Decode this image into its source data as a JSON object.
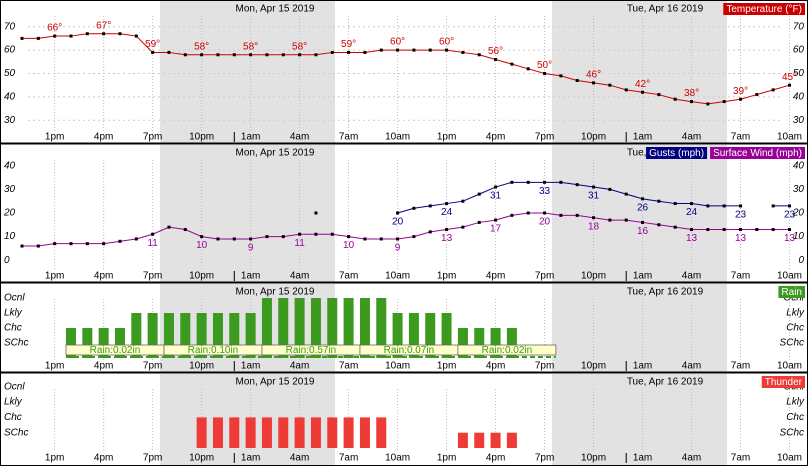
{
  "chart_data": [
    {
      "type": "line",
      "dates": [
        "Mon, Apr 15 2019",
        "Tue, Apr 16 2019"
      ],
      "categories": [
        null,
        null,
        "1pm",
        null,
        null,
        "4pm",
        null,
        null,
        "7pm",
        null,
        null,
        "10pm",
        null,
        null,
        "1am",
        null,
        null,
        "4am",
        null,
        null,
        "7am",
        null,
        null,
        "10am",
        null,
        null,
        "1pm",
        null,
        null,
        "4pm",
        null,
        null,
        "7pm",
        null,
        null,
        "10pm",
        null,
        null,
        "1am",
        null,
        null,
        "4am",
        null,
        null,
        "7am",
        null,
        null,
        "10am"
      ],
      "series": [
        {
          "name": "Temperature (°F)",
          "color": "#cc0000",
          "values": [
            65,
            65,
            66,
            66,
            67,
            67,
            67,
            66,
            59,
            59,
            58,
            58,
            58,
            58,
            58,
            58,
            58,
            58,
            58,
            59,
            59,
            59,
            60,
            60,
            60,
            60,
            60,
            59,
            58,
            56,
            54,
            52,
            50,
            49,
            47,
            46,
            45,
            43,
            42,
            41,
            39,
            38,
            37,
            38,
            39,
            41,
            43,
            45
          ],
          "value_labels": [
            null,
            null,
            "66°",
            null,
            null,
            "67°",
            null,
            null,
            "59°",
            null,
            null,
            "58°",
            null,
            null,
            "58°",
            null,
            null,
            "58°",
            null,
            null,
            "59°",
            null,
            null,
            "60°",
            null,
            null,
            "60°",
            null,
            null,
            "56°",
            null,
            null,
            "50°",
            null,
            null,
            "46°",
            null,
            null,
            "42°",
            null,
            null,
            "38°",
            null,
            null,
            "39°",
            null,
            null,
            "45°"
          ]
        }
      ],
      "ylim": [
        25,
        75
      ],
      "yticks": [
        30,
        40,
        50,
        60,
        70
      ],
      "grid": true
    },
    {
      "type": "line",
      "dates": [
        "Mon, Apr 15 2019",
        "Tue, Apr 16 2019"
      ],
      "categories": [
        null,
        null,
        "1pm",
        null,
        null,
        "4pm",
        null,
        null,
        "7pm",
        null,
        null,
        "10pm",
        null,
        null,
        "1am",
        null,
        null,
        "4am",
        null,
        null,
        "7am",
        null,
        null,
        "10am",
        null,
        null,
        "1pm",
        null,
        null,
        "4pm",
        null,
        null,
        "7pm",
        null,
        null,
        "10pm",
        null,
        null,
        "1am",
        null,
        null,
        "4am",
        null,
        null,
        "7am",
        null,
        null,
        "10am"
      ],
      "series": [
        {
          "name": "Gusts (mph)",
          "color": "#000080",
          "values": [
            null,
            null,
            null,
            null,
            null,
            null,
            null,
            null,
            null,
            null,
            null,
            null,
            null,
            null,
            null,
            null,
            null,
            null,
            20,
            null,
            null,
            null,
            null,
            20,
            22,
            23,
            24,
            25,
            28,
            31,
            33,
            33,
            33,
            33,
            32,
            31,
            30,
            28,
            26,
            25,
            24,
            24,
            23,
            23,
            23,
            null,
            23,
            23
          ],
          "value_labels": [
            null,
            null,
            null,
            null,
            null,
            null,
            null,
            null,
            null,
            null,
            null,
            null,
            null,
            null,
            null,
            null,
            null,
            null,
            null,
            null,
            null,
            null,
            null,
            "20",
            null,
            null,
            "24",
            null,
            null,
            "31",
            null,
            null,
            "33",
            null,
            null,
            "31",
            null,
            null,
            "26",
            null,
            null,
            "24",
            null,
            null,
            "23",
            null,
            null,
            "23"
          ]
        },
        {
          "name": "Surface Wind (mph)",
          "color": "#990099",
          "values": [
            6,
            6,
            7,
            7,
            7,
            7,
            8,
            9,
            11,
            14,
            13,
            10,
            9,
            9,
            9,
            10,
            10,
            11,
            11,
            11,
            10,
            9,
            9,
            9,
            10,
            12,
            13,
            14,
            16,
            17,
            19,
            20,
            20,
            19,
            19,
            18,
            17,
            17,
            16,
            15,
            14,
            13,
            13,
            13,
            13,
            13,
            13,
            13
          ],
          "value_labels": [
            null,
            null,
            null,
            null,
            null,
            null,
            null,
            null,
            "11",
            null,
            null,
            "10",
            null,
            null,
            "9",
            null,
            null,
            "11",
            null,
            null,
            "10",
            null,
            null,
            "9",
            null,
            null,
            "13",
            null,
            null,
            "17",
            null,
            null,
            "20",
            null,
            null,
            "18",
            null,
            null,
            "16",
            null,
            null,
            "13",
            null,
            null,
            "13",
            null,
            null,
            "13"
          ]
        }
      ],
      "ylim": [
        -5,
        45
      ],
      "yticks": [
        0,
        10,
        20,
        30,
        40
      ],
      "grid": false
    },
    {
      "type": "bar",
      "dates": [
        "Mon, Apr 15 2019",
        "Tue, Apr 16 2019"
      ],
      "categories": [
        null,
        null,
        "1pm",
        null,
        null,
        "4pm",
        null,
        null,
        "7pm",
        null,
        null,
        "10pm",
        null,
        null,
        "1am",
        null,
        null,
        "4am",
        null,
        null,
        "7am",
        null,
        null,
        "10am",
        null,
        null,
        "1pm",
        null,
        null,
        "4pm",
        null,
        null,
        "7pm",
        null,
        null,
        "10pm",
        null,
        null,
        "1am",
        null,
        null,
        "4am",
        null,
        null,
        "7am",
        null,
        null,
        "10am"
      ],
      "series": [
        {
          "name": "Rain",
          "color": "#3c9a1e",
          "values": [
            null,
            null,
            null,
            2,
            2,
            2,
            2,
            3,
            3,
            3,
            3,
            3,
            3,
            3,
            3,
            4,
            4,
            4,
            4,
            4,
            4,
            4,
            4,
            3,
            3,
            3,
            3,
            2,
            2,
            2,
            2,
            null,
            null,
            null,
            null,
            null,
            null,
            null,
            null,
            null,
            null,
            null,
            null,
            null,
            null,
            null,
            null,
            null
          ]
        }
      ],
      "annotations": [
        "Rain:0.02in",
        "Rain:0.10in",
        "Rain:0.57in",
        "Rain:0.07in",
        "Rain:0.02in"
      ],
      "ylim": [
        0,
        4.9
      ],
      "yticks": [
        {
          "value": 1,
          "label": "SChc"
        },
        {
          "value": 2,
          "label": "Chc"
        },
        {
          "value": 3,
          "label": "Lkly"
        },
        {
          "value": 4,
          "label": "Ocnl"
        }
      ],
      "grid": false
    },
    {
      "type": "bar",
      "dates": [
        "Mon, Apr 15 2019",
        "Tue, Apr 16 2019"
      ],
      "categories": [
        null,
        null,
        "1pm",
        null,
        null,
        "4pm",
        null,
        null,
        "7pm",
        null,
        null,
        "10pm",
        null,
        null,
        "1am",
        null,
        null,
        "4am",
        null,
        null,
        "7am",
        null,
        null,
        "10am",
        null,
        null,
        "1pm",
        null,
        null,
        "4pm",
        null,
        null,
        "7pm",
        null,
        null,
        "10pm",
        null,
        null,
        "1am",
        null,
        null,
        "4am",
        null,
        null,
        "7am",
        null,
        null,
        "10am"
      ],
      "series": [
        {
          "name": "Thunder",
          "color": "#ee3b36",
          "values": [
            null,
            null,
            null,
            null,
            null,
            null,
            null,
            null,
            null,
            null,
            null,
            2,
            2,
            2,
            2,
            2,
            2,
            2,
            2,
            2,
            2,
            2,
            2,
            null,
            null,
            null,
            null,
            1,
            1,
            1,
            1,
            null,
            null,
            null,
            null,
            null,
            null,
            null,
            null,
            null,
            null,
            null,
            null,
            null,
            null,
            null,
            null,
            null
          ]
        }
      ],
      "ylim": [
        0,
        4.9
      ],
      "yticks": [
        {
          "value": 1,
          "label": "SChc"
        },
        {
          "value": 2,
          "label": "Chc"
        },
        {
          "value": 3,
          "label": "Lkly"
        },
        {
          "value": 4,
          "label": "Ocnl"
        }
      ],
      "grid": false
    }
  ]
}
